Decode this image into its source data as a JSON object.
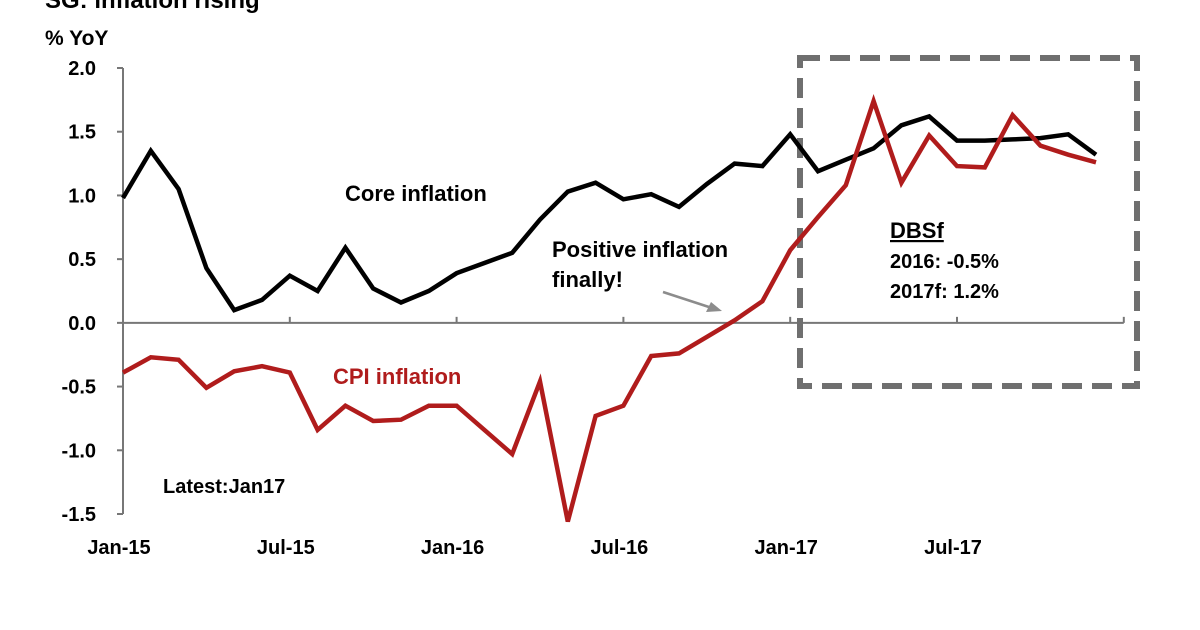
{
  "chart_data": {
    "type": "line",
    "title": "SG: inflation rising",
    "ylabel": "% YoY",
    "ylim": [
      -1.5,
      2.0
    ],
    "yticks": [
      "2.0",
      "1.5",
      "1.0",
      "0.5",
      "0.0",
      "-0.5",
      "-1.0",
      "-1.5"
    ],
    "ytick_values": [
      2.0,
      1.5,
      1.0,
      0.5,
      0.0,
      -0.5,
      -1.0,
      -1.5
    ],
    "x_month_count": 36,
    "x_ticks": [
      {
        "label": "Jan-15",
        "month": 0
      },
      {
        "label": "Jul-15",
        "month": 6
      },
      {
        "label": "Jan-16",
        "month": 12
      },
      {
        "label": "Jul-16",
        "month": 18
      },
      {
        "label": "Jan-17",
        "month": 24
      },
      {
        "label": "Jul-17",
        "month": 30
      }
    ],
    "series": [
      {
        "name": "Core inflation",
        "color": "#000000",
        "values": [
          0.98,
          1.35,
          1.05,
          0.43,
          0.1,
          0.18,
          0.37,
          0.25,
          0.59,
          0.27,
          0.16,
          0.25,
          0.39,
          0.47,
          0.55,
          0.81,
          1.03,
          1.1,
          0.97,
          1.01,
          0.91,
          1.09,
          1.25,
          1.23,
          1.48,
          1.19,
          1.28,
          1.37,
          1.55,
          1.62,
          1.43,
          1.43,
          1.44,
          1.45,
          1.48,
          1.32
        ]
      },
      {
        "name": "CPI inflation",
        "color": "#b01c1c",
        "values": [
          -0.39,
          -0.27,
          -0.29,
          -0.51,
          -0.38,
          -0.34,
          -0.39,
          -0.84,
          -0.65,
          -0.77,
          -0.76,
          -0.65,
          -0.65,
          -0.84,
          -1.03,
          -0.46,
          -1.56,
          -0.73,
          -0.65,
          -0.26,
          -0.24,
          -0.11,
          0.02,
          0.17,
          0.57,
          0.83,
          1.08,
          1.74,
          1.1,
          1.47,
          1.23,
          1.22,
          1.63,
          1.39,
          1.32,
          1.26
        ]
      }
    ],
    "forecast_start_month": 24,
    "annotations": {
      "core_label": "Core inflation",
      "cpi_label": "CPI inflation",
      "positive_line1": "Positive inflation",
      "positive_line2": "finally!",
      "dbs_title": "DBSf",
      "dbs_2016": "2016:  -0.5%",
      "dbs_2017": "2017f:  1.2%",
      "latest": "Latest:Jan17"
    },
    "colors": {
      "core": "#000000",
      "cpi": "#b01c1c",
      "axis": "#777777",
      "forecast_box": "#6f6f6f",
      "arrow": "#8c8c8c"
    }
  }
}
